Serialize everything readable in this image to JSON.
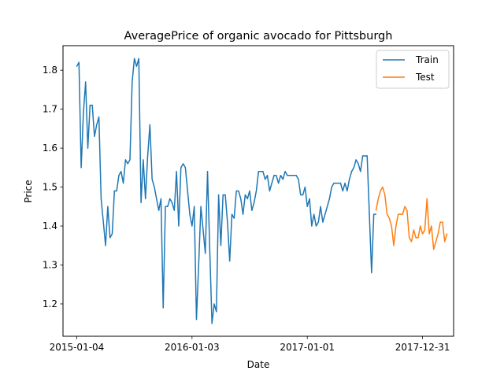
{
  "chart_data": {
    "type": "line",
    "title": "AveragePrice of organic avocado for Pittsburgh",
    "xlabel": "Date",
    "ylabel": "Price",
    "x_tick_labels": [
      "2015-01-04",
      "2016-01-03",
      "2017-01-01",
      "2017-12-31"
    ],
    "x_tick_weeks": [
      0,
      52,
      104,
      156
    ],
    "y_ticks": [
      1.2,
      1.3,
      1.4,
      1.5,
      1.6,
      1.7,
      1.8
    ],
    "xlim_weeks": [
      -6.2,
      170
    ],
    "ylim": [
      1.117,
      1.863
    ],
    "legend": {
      "position": "upper right",
      "entries": [
        "Train",
        "Test"
      ]
    },
    "series": [
      {
        "name": "Train",
        "color": "#1f77b4",
        "start_week": 0,
        "values": [
          1.81,
          1.82,
          1.55,
          1.69,
          1.77,
          1.6,
          1.71,
          1.71,
          1.63,
          1.66,
          1.68,
          1.47,
          1.41,
          1.35,
          1.45,
          1.37,
          1.38,
          1.49,
          1.49,
          1.53,
          1.54,
          1.51,
          1.57,
          1.56,
          1.57,
          1.77,
          1.83,
          1.81,
          1.83,
          1.46,
          1.57,
          1.47,
          1.58,
          1.66,
          1.52,
          1.5,
          1.47,
          1.44,
          1.47,
          1.19,
          1.45,
          1.45,
          1.47,
          1.46,
          1.44,
          1.54,
          1.4,
          1.55,
          1.56,
          1.55,
          1.49,
          1.43,
          1.4,
          1.45,
          1.16,
          1.3,
          1.45,
          1.39,
          1.33,
          1.54,
          1.34,
          1.15,
          1.2,
          1.18,
          1.48,
          1.35,
          1.48,
          1.48,
          1.41,
          1.31,
          1.43,
          1.42,
          1.49,
          1.49,
          1.47,
          1.43,
          1.48,
          1.47,
          1.49,
          1.44,
          1.46,
          1.49,
          1.54,
          1.54,
          1.54,
          1.52,
          1.53,
          1.49,
          1.51,
          1.53,
          1.53,
          1.51,
          1.53,
          1.52,
          1.54,
          1.53,
          1.53,
          1.53,
          1.53,
          1.53,
          1.52,
          1.48,
          1.48,
          1.5,
          1.45,
          1.47,
          1.4,
          1.43,
          1.4,
          1.41,
          1.45,
          1.41,
          1.43,
          1.45,
          1.47,
          1.5,
          1.51,
          1.51,
          1.51,
          1.51,
          1.49,
          1.51,
          1.49,
          1.52,
          1.54,
          1.55,
          1.57,
          1.56,
          1.54,
          1.58,
          1.58,
          1.58,
          1.43,
          1.28,
          1.43,
          1.43
        ]
      },
      {
        "name": "Test",
        "color": "#ff7f0e",
        "start_week": 135,
        "values": [
          1.44,
          1.47,
          1.49,
          1.5,
          1.48,
          1.43,
          1.42,
          1.4,
          1.35,
          1.4,
          1.43,
          1.43,
          1.43,
          1.45,
          1.44,
          1.37,
          1.36,
          1.39,
          1.37,
          1.37,
          1.4,
          1.38,
          1.39,
          1.47,
          1.38,
          1.4,
          1.34,
          1.36,
          1.38,
          1.41,
          1.41,
          1.36,
          1.38
        ]
      }
    ]
  }
}
